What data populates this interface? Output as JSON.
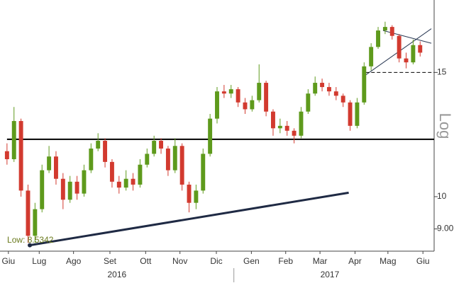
{
  "chart_data": {
    "type": "candlestick",
    "scale": "log",
    "axis_label": "Log",
    "up_color": "#5e9a1c",
    "down_color": "#d23a2f",
    "ylim": [
      8.37,
      19.0
    ],
    "yticks": [
      {
        "value": 9,
        "label": "9.00"
      },
      10,
      15
    ],
    "xlim": [
      -1,
      61
    ],
    "xticks": [
      {
        "value": 0.2,
        "label": "Giu"
      },
      {
        "value": 4.6,
        "label": "Lug"
      },
      {
        "value": 9.5,
        "label": "Ago"
      },
      {
        "value": 14.7,
        "label": "Set"
      },
      {
        "value": 19.8,
        "label": "Ott"
      },
      {
        "value": 24.7,
        "label": "Nov"
      },
      {
        "value": 29.9,
        "label": "Dic"
      },
      {
        "value": 34.9,
        "label": "Gen"
      },
      {
        "value": 39.8,
        "label": "Feb"
      },
      {
        "value": 44.7,
        "label": "Mar"
      },
      {
        "value": 49.7,
        "label": "Apr"
      },
      {
        "value": 54.4,
        "label": "Mag"
      },
      {
        "value": 59.4,
        "label": "Giu"
      }
    ],
    "year_labels": [
      {
        "value": 15.7,
        "label": "2016"
      },
      {
        "value": 46.1,
        "label": "2017"
      }
    ],
    "candles": [
      [
        11.6,
        11.9,
        11.1,
        11.3
      ],
      [
        11.3,
        13.4,
        11.2,
        12.8
      ],
      [
        12.8,
        12.9,
        10.0,
        10.2
      ],
      [
        10.2,
        10.4,
        8.6,
        8.8
      ],
      [
        8.8,
        9.8,
        8.6,
        9.6
      ],
      [
        9.6,
        11.1,
        9.5,
        10.9
      ],
      [
        10.9,
        11.8,
        10.8,
        11.4
      ],
      [
        11.4,
        11.6,
        10.4,
        10.6
      ],
      [
        10.6,
        10.8,
        9.6,
        9.9
      ],
      [
        9.9,
        10.7,
        9.8,
        10.5
      ],
      [
        10.5,
        10.7,
        9.9,
        10.1
      ],
      [
        10.1,
        11.1,
        10.0,
        10.9
      ],
      [
        10.9,
        11.9,
        10.8,
        11.7
      ],
      [
        11.7,
        12.3,
        11.6,
        12.0
      ],
      [
        12.0,
        12.1,
        11.0,
        11.2
      ],
      [
        11.2,
        11.3,
        10.3,
        10.5
      ],
      [
        10.5,
        10.7,
        10.1,
        10.3
      ],
      [
        10.3,
        10.9,
        10.2,
        10.6
      ],
      [
        10.6,
        10.8,
        10.2,
        10.4
      ],
      [
        10.4,
        11.3,
        10.3,
        11.1
      ],
      [
        11.1,
        11.7,
        11.0,
        11.5
      ],
      [
        11.5,
        12.2,
        11.4,
        12.0
      ],
      [
        12.0,
        12.1,
        11.5,
        11.7
      ],
      [
        11.7,
        11.8,
        10.7,
        10.9
      ],
      [
        10.9,
        12.1,
        10.8,
        11.8
      ],
      [
        11.8,
        11.9,
        10.2,
        10.4
      ],
      [
        10.4,
        10.5,
        9.5,
        9.8
      ],
      [
        9.8,
        10.4,
        9.6,
        10.2
      ],
      [
        10.2,
        11.7,
        10.1,
        11.5
      ],
      [
        11.5,
        13.1,
        11.4,
        12.9
      ],
      [
        12.9,
        14.3,
        12.7,
        14.1
      ],
      [
        14.1,
        14.4,
        13.8,
        14.0
      ],
      [
        14.0,
        14.4,
        13.8,
        14.2
      ],
      [
        14.2,
        14.3,
        13.4,
        13.6
      ],
      [
        13.6,
        13.8,
        13.1,
        13.3
      ],
      [
        13.3,
        13.9,
        13.2,
        13.7
      ],
      [
        13.7,
        15.4,
        13.6,
        14.5
      ],
      [
        14.5,
        14.6,
        13.0,
        13.2
      ],
      [
        13.2,
        13.3,
        12.2,
        12.5
      ],
      [
        12.5,
        12.9,
        12.3,
        12.6
      ],
      [
        12.6,
        12.8,
        12.2,
        12.4
      ],
      [
        12.4,
        12.5,
        11.9,
        12.2
      ],
      [
        12.2,
        13.4,
        12.1,
        13.2
      ],
      [
        13.2,
        14.2,
        13.1,
        14.0
      ],
      [
        14.0,
        14.8,
        13.9,
        14.5
      ],
      [
        14.5,
        14.7,
        14.1,
        14.3
      ],
      [
        14.3,
        14.5,
        13.9,
        14.1
      ],
      [
        14.1,
        14.3,
        13.7,
        13.9
      ],
      [
        13.9,
        14.0,
        13.4,
        13.6
      ],
      [
        13.6,
        13.7,
        12.4,
        12.6
      ],
      [
        12.6,
        13.8,
        12.5,
        13.6
      ],
      [
        13.6,
        15.5,
        13.5,
        15.3
      ],
      [
        15.3,
        16.5,
        15.1,
        16.3
      ],
      [
        16.3,
        17.4,
        16.2,
        17.2
      ],
      [
        17.2,
        17.7,
        17.0,
        17.4
      ],
      [
        17.4,
        17.5,
        16.7,
        16.9
      ],
      [
        16.9,
        17.0,
        15.5,
        15.7
      ],
      [
        15.7,
        16.0,
        15.2,
        15.5
      ],
      [
        15.5,
        16.7,
        15.4,
        16.4
      ],
      [
        16.4,
        16.6,
        15.8,
        16.0
      ]
    ],
    "trendlines": [
      {
        "x": [
          0,
          61
        ],
        "y": [
          12.06,
          12.06
        ],
        "color": "#000000",
        "width": 2
      },
      {
        "x": [
          3.26,
          48.8
        ],
        "y": [
          8.5342,
          10.13
        ],
        "color": "#1f2a44",
        "width": 3
      },
      {
        "x": [
          50.9,
          60.6
        ],
        "y": [
          14.8,
          17.3
        ],
        "color": "#2b3a55",
        "width": 1
      },
      {
        "x": [
          53.7,
          60.6
        ],
        "y": [
          17.2,
          16.5
        ],
        "color": "#2b3a55",
        "width": 1
      },
      {
        "x": [
          51.2,
          61
        ],
        "y": [
          15,
          15
        ],
        "color": "#000000",
        "width": 1,
        "dashed": true
      }
    ],
    "annotation": {
      "text": "Low: 8.5342",
      "x": 3.26,
      "y": 8.5342,
      "color": "#6b7a1e"
    }
  }
}
